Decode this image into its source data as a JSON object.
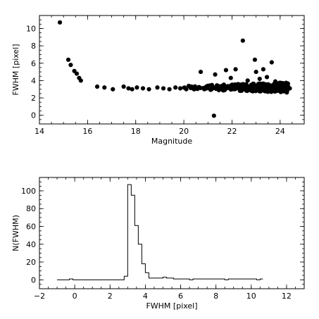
{
  "chart_data": [
    {
      "type": "scatter",
      "xlabel": "Magnitude",
      "ylabel": "FWHM [pixel]",
      "xlim": [
        14,
        25
      ],
      "ylim": [
        -1,
        11.5
      ],
      "x_ticks": [
        14,
        16,
        18,
        20,
        22,
        24
      ],
      "y_ticks": [
        0,
        2,
        4,
        6,
        8,
        10
      ],
      "grid": false,
      "points": [
        {
          "x": 14.85,
          "y": 10.7
        },
        {
          "x": 15.2,
          "y": 6.4
        },
        {
          "x": 15.3,
          "y": 5.8
        },
        {
          "x": 15.45,
          "y": 5.1
        },
        {
          "x": 15.55,
          "y": 4.8
        },
        {
          "x": 15.65,
          "y": 4.3
        },
        {
          "x": 15.72,
          "y": 4.0
        },
        {
          "x": 16.4,
          "y": 3.3
        },
        {
          "x": 16.7,
          "y": 3.2
        },
        {
          "x": 17.05,
          "y": 3.0
        },
        {
          "x": 17.5,
          "y": 3.3
        },
        {
          "x": 17.7,
          "y": 3.1
        },
        {
          "x": 17.85,
          "y": 3.0
        },
        {
          "x": 18.05,
          "y": 3.2
        },
        {
          "x": 18.3,
          "y": 3.1
        },
        {
          "x": 18.55,
          "y": 3.0
        },
        {
          "x": 18.9,
          "y": 3.2
        },
        {
          "x": 19.15,
          "y": 3.1
        },
        {
          "x": 19.4,
          "y": 3.0
        },
        {
          "x": 19.65,
          "y": 3.2
        },
        {
          "x": 19.85,
          "y": 3.1
        },
        {
          "x": 20.1,
          "y": 3.0
        },
        {
          "x": 20.25,
          "y": 3.3
        },
        {
          "x": 20.45,
          "y": 3.1
        },
        {
          "x": 20.6,
          "y": 3.2
        },
        {
          "x": 20.7,
          "y": 5.0
        },
        {
          "x": 20.85,
          "y": 3.0
        },
        {
          "x": 21.0,
          "y": 3.4
        },
        {
          "x": 21.15,
          "y": 3.1
        },
        {
          "x": 21.25,
          "y": -0.05
        },
        {
          "x": 21.3,
          "y": 4.7
        },
        {
          "x": 21.45,
          "y": 3.3
        },
        {
          "x": 21.6,
          "y": 3.0
        },
        {
          "x": 21.75,
          "y": 5.2
        },
        {
          "x": 21.85,
          "y": 3.2
        },
        {
          "x": 21.95,
          "y": 4.3
        },
        {
          "x": 22.05,
          "y": 3.1
        },
        {
          "x": 22.15,
          "y": 5.3
        },
        {
          "x": 22.25,
          "y": 3.4
        },
        {
          "x": 22.35,
          "y": 3.0
        },
        {
          "x": 22.45,
          "y": 8.6
        },
        {
          "x": 22.55,
          "y": 3.2
        },
        {
          "x": 22.65,
          "y": 4.0
        },
        {
          "x": 22.75,
          "y": 3.1
        },
        {
          "x": 22.85,
          "y": 3.5
        },
        {
          "x": 22.95,
          "y": 6.4
        },
        {
          "x": 23.0,
          "y": 5.0
        },
        {
          "x": 23.05,
          "y": 3.2
        },
        {
          "x": 23.15,
          "y": 4.2
        },
        {
          "x": 23.25,
          "y": 3.0
        },
        {
          "x": 23.3,
          "y": 5.3
        },
        {
          "x": 23.35,
          "y": 3.6
        },
        {
          "x": 23.45,
          "y": 4.4
        },
        {
          "x": 23.55,
          "y": 3.3
        },
        {
          "x": 23.65,
          "y": 6.1
        },
        {
          "x": 23.7,
          "y": 3.1
        },
        {
          "x": 23.8,
          "y": 3.9
        },
        {
          "x": 23.9,
          "y": 3.4
        },
        {
          "x": 24.0,
          "y": 3.0
        },
        {
          "x": 24.1,
          "y": 3.6
        },
        {
          "x": 24.2,
          "y": 3.2
        },
        {
          "x": 24.3,
          "y": 3.3
        },
        {
          "x": 24.4,
          "y": 3.1
        }
      ],
      "band": {
        "x_from": 20.0,
        "x_to": 24.4,
        "y_center": 3.2,
        "y_spread": 0.45
      }
    },
    {
      "type": "line",
      "style": "histogram-step",
      "xlabel": "FWHM [pixel]",
      "ylabel": "N(FWHM)",
      "xlim": [
        -2,
        13
      ],
      "ylim": [
        -10,
        115
      ],
      "x_ticks": [
        -2,
        0,
        2,
        4,
        6,
        8,
        10,
        12
      ],
      "y_ticks": [
        0,
        20,
        40,
        60,
        80,
        100
      ],
      "grid": false,
      "x": [
        -1.0,
        -0.3,
        -0.1,
        2.8,
        3.0,
        3.2,
        3.4,
        3.6,
        3.8,
        4.0,
        4.2,
        4.6,
        5.0,
        5.2,
        5.6,
        6.0,
        6.5,
        6.7,
        8.5,
        8.7,
        10.3,
        10.5
      ],
      "y": [
        0,
        1,
        0,
        4,
        107,
        95,
        61,
        40,
        18,
        8,
        2,
        2,
        3,
        2,
        1,
        1,
        0,
        1,
        0,
        1,
        0,
        1
      ]
    }
  ]
}
